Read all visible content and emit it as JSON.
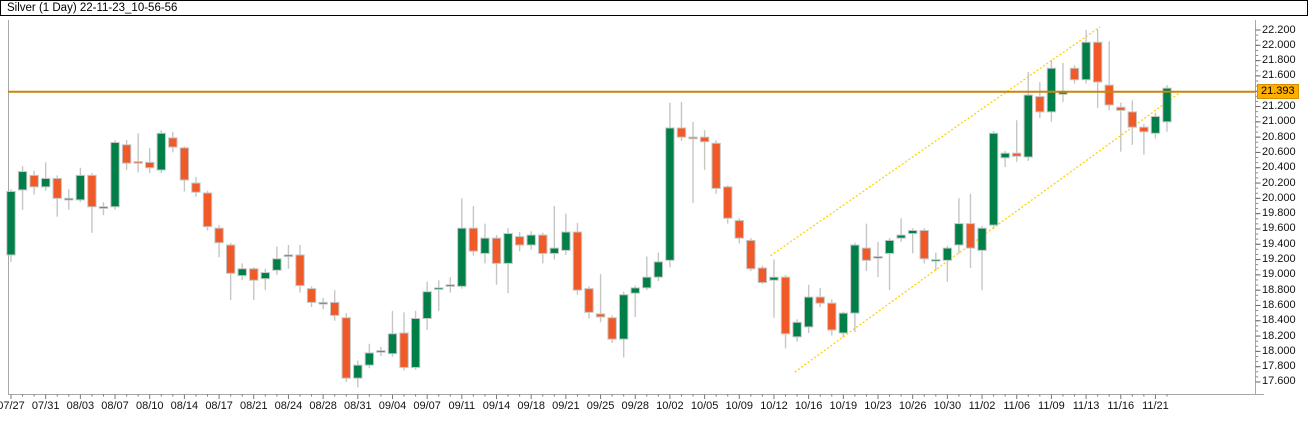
{
  "title_bar": {
    "title": "Silver (1 Day) 22-11-23_10-56-56"
  },
  "chart_data": {
    "type": "candlestick",
    "symbol": "Silver",
    "timeframe": "1 Day",
    "snapshot": "22-11-23_10-56-56",
    "x_labels": [
      "07/27",
      "07/31",
      "08/03",
      "08/07",
      "08/10",
      "08/14",
      "08/17",
      "08/21",
      "08/24",
      "08/28",
      "08/31",
      "09/04",
      "09/07",
      "09/11",
      "09/14",
      "09/18",
      "09/21",
      "09/25",
      "09/28",
      "10/02",
      "10/05",
      "10/09",
      "10/12",
      "10/16",
      "10/19",
      "10/23",
      "10/26",
      "10/30",
      "11/02",
      "11/06",
      "11/09",
      "11/13",
      "11/16",
      "11/21"
    ],
    "x_label_every_n_candles": 3,
    "y_axis": {
      "labels": [
        "22.200",
        "22.000",
        "21.800",
        "21.600",
        "21.200",
        "21.000",
        "20.800",
        "20.600",
        "20.400",
        "20.200",
        "20.000",
        "19.800",
        "19.600",
        "19.400",
        "19.200",
        "19.000",
        "18.800",
        "18.600",
        "18.400",
        "18.200",
        "18.000",
        "17.800",
        "17.600"
      ],
      "min": 17.6,
      "max": 22.2,
      "step": 0.2,
      "side": "right",
      "grid": false
    },
    "ohlc_note": "each entry is [open, high, low, close]",
    "ohlc": [
      [
        19.26,
        20.12,
        19.17,
        20.09
      ],
      [
        20.11,
        20.42,
        19.85,
        20.35
      ],
      [
        20.3,
        20.36,
        20.05,
        20.15
      ],
      [
        20.15,
        20.47,
        20.1,
        20.26
      ],
      [
        20.26,
        20.3,
        19.76,
        20.0
      ],
      [
        19.98,
        20.12,
        19.85,
        20.0
      ],
      [
        19.98,
        20.4,
        19.95,
        20.3
      ],
      [
        20.3,
        20.33,
        19.55,
        19.89
      ],
      [
        19.87,
        19.95,
        19.78,
        19.89
      ],
      [
        19.89,
        20.76,
        19.85,
        20.73
      ],
      [
        20.7,
        20.76,
        20.37,
        20.46
      ],
      [
        20.48,
        20.85,
        20.34,
        20.46
      ],
      [
        20.47,
        20.66,
        20.33,
        20.4
      ],
      [
        20.37,
        20.89,
        20.33,
        20.85
      ],
      [
        20.79,
        20.87,
        20.6,
        20.67
      ],
      [
        20.66,
        20.68,
        20.09,
        20.24
      ],
      [
        20.2,
        20.28,
        20.02,
        20.08
      ],
      [
        20.07,
        20.1,
        19.58,
        19.63
      ],
      [
        19.61,
        19.65,
        19.23,
        19.42
      ],
      [
        19.39,
        19.42,
        18.67,
        19.02
      ],
      [
        18.99,
        19.15,
        18.93,
        19.08
      ],
      [
        19.08,
        19.1,
        18.67,
        18.93
      ],
      [
        18.95,
        19.08,
        18.8,
        19.03
      ],
      [
        19.06,
        19.37,
        19.0,
        19.21
      ],
      [
        19.25,
        19.39,
        19.08,
        19.26
      ],
      [
        19.26,
        19.39,
        18.77,
        18.86
      ],
      [
        18.82,
        18.85,
        18.58,
        18.64
      ],
      [
        18.63,
        18.7,
        18.55,
        18.64
      ],
      [
        18.64,
        18.8,
        18.4,
        18.47
      ],
      [
        18.44,
        18.5,
        17.6,
        17.65
      ],
      [
        17.65,
        17.88,
        17.53,
        17.82
      ],
      [
        17.82,
        18.1,
        17.78,
        17.98
      ],
      [
        18.0,
        18.06,
        17.94,
        18.01
      ],
      [
        17.97,
        18.53,
        17.93,
        18.23
      ],
      [
        18.24,
        18.51,
        17.75,
        17.79
      ],
      [
        17.79,
        18.53,
        17.76,
        18.43
      ],
      [
        18.43,
        18.91,
        18.28,
        18.78
      ],
      [
        18.82,
        18.93,
        18.53,
        18.83
      ],
      [
        18.86,
        18.97,
        18.77,
        18.87
      ],
      [
        18.85,
        20.0,
        18.82,
        19.61
      ],
      [
        19.61,
        19.9,
        19.25,
        19.31
      ],
      [
        19.28,
        19.67,
        19.15,
        19.48
      ],
      [
        19.48,
        19.52,
        18.87,
        19.15
      ],
      [
        19.15,
        19.61,
        18.76,
        19.54
      ],
      [
        19.5,
        19.56,
        19.31,
        19.39
      ],
      [
        19.39,
        19.57,
        19.33,
        19.52
      ],
      [
        19.52,
        19.55,
        19.15,
        19.28
      ],
      [
        19.28,
        19.9,
        19.2,
        19.35
      ],
      [
        19.32,
        19.8,
        19.26,
        19.56
      ],
      [
        19.56,
        19.68,
        18.74,
        18.8
      ],
      [
        18.82,
        18.85,
        18.43,
        18.51
      ],
      [
        18.49,
        19.01,
        18.38,
        18.45
      ],
      [
        18.44,
        18.47,
        18.11,
        18.16
      ],
      [
        18.16,
        18.78,
        17.92,
        18.74
      ],
      [
        18.76,
        18.86,
        18.45,
        18.83
      ],
      [
        18.83,
        19.24,
        18.8,
        18.97
      ],
      [
        18.97,
        19.29,
        18.92,
        19.17
      ],
      [
        19.19,
        21.25,
        19.1,
        20.92
      ],
      [
        20.92,
        21.26,
        20.75,
        20.8
      ],
      [
        20.8,
        21.0,
        19.94,
        20.79
      ],
      [
        20.8,
        20.89,
        20.37,
        20.74
      ],
      [
        20.72,
        20.76,
        20.06,
        20.13
      ],
      [
        20.15,
        20.17,
        19.67,
        19.74
      ],
      [
        19.71,
        19.74,
        19.41,
        19.48
      ],
      [
        19.45,
        19.48,
        19.05,
        19.08
      ],
      [
        19.09,
        19.12,
        18.88,
        18.9
      ],
      [
        18.93,
        19.2,
        18.44,
        18.97
      ],
      [
        18.97,
        19.0,
        18.04,
        18.23
      ],
      [
        18.19,
        18.42,
        18.13,
        18.38
      ],
      [
        18.32,
        18.87,
        18.24,
        18.71
      ],
      [
        18.71,
        18.83,
        18.58,
        18.63
      ],
      [
        18.63,
        18.68,
        18.21,
        18.28
      ],
      [
        18.24,
        18.52,
        18.18,
        18.5
      ],
      [
        18.5,
        19.42,
        18.25,
        19.39
      ],
      [
        19.35,
        19.67,
        19.05,
        19.19
      ],
      [
        19.23,
        19.43,
        18.97,
        19.24
      ],
      [
        19.28,
        19.48,
        18.8,
        19.45
      ],
      [
        19.48,
        19.74,
        19.43,
        19.52
      ],
      [
        19.54,
        19.61,
        19.28,
        19.58
      ],
      [
        19.58,
        19.61,
        19.15,
        19.21
      ],
      [
        19.19,
        19.29,
        19.05,
        19.2
      ],
      [
        19.19,
        19.38,
        18.91,
        19.35
      ],
      [
        19.39,
        20.0,
        19.28,
        19.67
      ],
      [
        19.67,
        20.06,
        19.09,
        19.35
      ],
      [
        19.32,
        19.64,
        18.8,
        19.61
      ],
      [
        19.65,
        20.88,
        19.6,
        20.85
      ],
      [
        20.53,
        20.62,
        20.41,
        20.59
      ],
      [
        20.59,
        21.02,
        20.48,
        20.55
      ],
      [
        20.54,
        21.65,
        20.49,
        21.35
      ],
      [
        21.33,
        21.52,
        21.05,
        21.13
      ],
      [
        21.13,
        21.81,
        21.0,
        21.7
      ],
      [
        21.36,
        21.77,
        21.26,
        21.4
      ],
      [
        21.7,
        21.74,
        21.5,
        21.55
      ],
      [
        21.55,
        22.2,
        21.5,
        22.04
      ],
      [
        22.04,
        22.21,
        21.18,
        21.52
      ],
      [
        21.48,
        22.05,
        21.15,
        21.22
      ],
      [
        21.19,
        21.25,
        20.61,
        21.15
      ],
      [
        21.13,
        21.28,
        20.7,
        20.93
      ],
      [
        20.93,
        20.97,
        20.57,
        20.87
      ],
      [
        20.85,
        21.12,
        20.78,
        21.07
      ],
      [
        21.0,
        21.48,
        20.87,
        21.44
      ]
    ],
    "price_line": {
      "label": "21.393",
      "value": 21.393,
      "color": "#c8860b",
      "label_bg": "#ffaf00"
    },
    "channel": {
      "color": "#ffd200",
      "style": "dotted",
      "upper": {
        "from": {
          "index": 65.7,
          "price": 19.25
        },
        "to": {
          "index": 94.2,
          "price": 22.24
        }
      },
      "lower": {
        "from": {
          "index": 67.8,
          "price": 17.73
        },
        "to": {
          "index": 101.1,
          "price": 21.38
        }
      }
    },
    "colors": {
      "up": "#008048",
      "down": "#f05a28",
      "wick": "#c6c6c6",
      "axis": "#a8a8a8",
      "text": "#111111"
    }
  }
}
